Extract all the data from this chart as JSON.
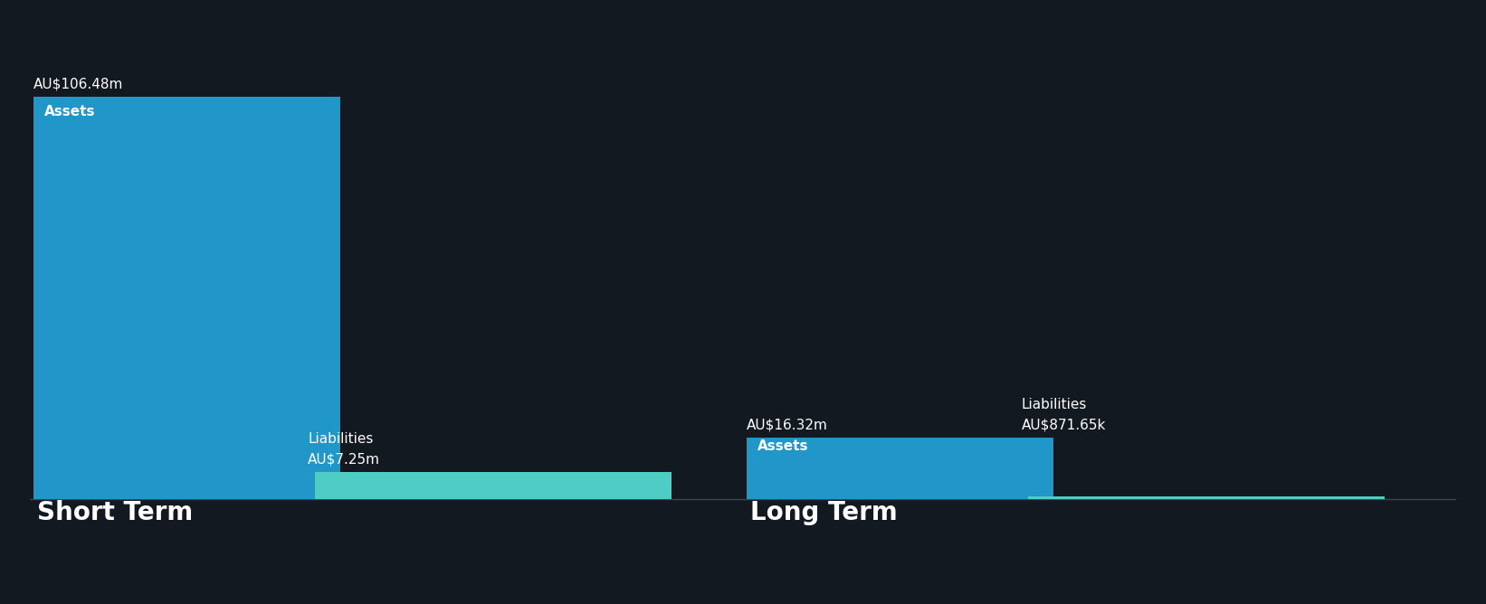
{
  "background_color": "#131920",
  "text_color": "#ffffff",
  "asset_color": "#2196c8",
  "liability_color": "#4ecdc4",
  "short_term": {
    "label": "Short Term",
    "assets_value": 106.48,
    "liabilities_value": 7.25,
    "assets_label": "AU$106.48m",
    "liabilities_label": "AU$7.25m",
    "assets_text": "Assets",
    "liabilities_text": "Liabilities"
  },
  "long_term": {
    "label": "Long Term",
    "assets_value": 16.32,
    "liabilities_value": 0.87165,
    "assets_label": "AU$16.32m",
    "liabilities_label": "AU$871.65k",
    "assets_text": "Assets",
    "liabilities_text": "Liabilities"
  },
  "section_label_fontsize": 20,
  "bar_label_fontsize": 11,
  "bar_text_fontsize": 11,
  "value_label_fontsize": 11
}
